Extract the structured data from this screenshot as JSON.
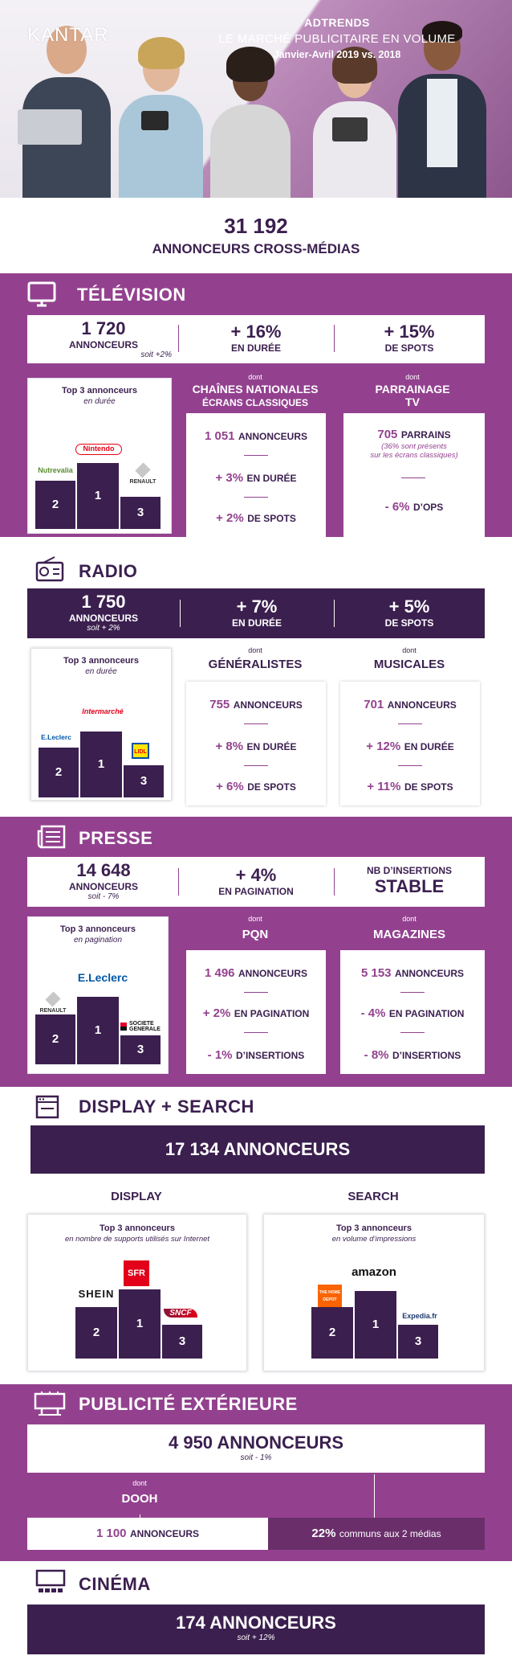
{
  "header": {
    "brand": "KANTAR",
    "title1": "ADTRENDS",
    "title2": "LE MARCHÉ PUBLICITAIRE EN VOLUME",
    "title3": "Janvier-Avril 2019 vs. 2018"
  },
  "total": {
    "number": "31 192",
    "label": "ANNONCEURS CROSS-MÉDIAS"
  },
  "tv": {
    "title": "TÉLÉVISION",
    "icon": "tv-icon",
    "kpi1_num": "1 720",
    "kpi1_label": "ANNONCEURS",
    "kpi1_sub": "soit +2%",
    "kpi2_num": "+ 16%",
    "kpi2_label": "EN DURÉE",
    "kpi3_num": "+ 15%",
    "kpi3_label": "DE SPOTS",
    "top3_title": "Top 3 annonceurs",
    "top3_sub": "en durée",
    "logo1": "Nintendo",
    "logo2": "Nutrevalia",
    "logo3": "RENAULT",
    "col1_dont": "dont",
    "col1_title_a": "CHAÎNES NATIONALES",
    "col1_title_b": "ÉCRANS CLASSIQUES",
    "col1_s1_num": "1 051",
    "col1_s1_label": "ANNONCEURS",
    "col1_s2_num": "+ 3%",
    "col1_s2_label": "EN DURÉE",
    "col1_s3_num": "+ 2%",
    "col1_s3_label": "DE SPOTS",
    "col2_dont": "dont",
    "col2_title_a": "PARRAINAGE",
    "col2_title_b": "TV",
    "col2_s1_num": "705",
    "col2_s1_label": "PARRAINS",
    "col2_s1_note_a": "(36% sont présents",
    "col2_s1_note_b": "sur les écrans classiques)",
    "col2_s2_num": "- 6%",
    "col2_s2_label": "D’OPS"
  },
  "radio": {
    "title": "RADIO",
    "icon": "radio-icon",
    "kpi1_num": "1 750",
    "kpi1_label": "ANNONCEURS",
    "kpi1_sub": "soit + 2%",
    "kpi2_num": "+ 7%",
    "kpi2_label": "EN DURÉE",
    "kpi3_num": "+ 5%",
    "kpi3_label": "DE SPOTS",
    "top3_title": "Top 3 annonceurs",
    "top3_sub": "en durée",
    "logo1": "Intermarché",
    "logo2": "E.Leclerc",
    "logo3": "LIDL",
    "col1_dont": "dont",
    "col1_title": "GÉNÉRALISTES",
    "col1_s1_num": "755",
    "col1_s1_label": "ANNONCEURS",
    "col1_s2_num": "+ 8%",
    "col1_s2_label": "EN DURÉE",
    "col1_s3_num": "+ 6%",
    "col1_s3_label": "DE SPOTS",
    "col2_dont": "dont",
    "col2_title": "MUSICALES",
    "col2_s1_num": "701",
    "col2_s1_label": "ANNONCEURS",
    "col2_s2_num": "+ 12%",
    "col2_s2_label": "EN DURÉE",
    "col2_s3_num": "+ 11%",
    "col2_s3_label": "DE SPOTS"
  },
  "presse": {
    "title": "PRESSE",
    "icon": "newspaper-icon",
    "kpi1_num": "14 648",
    "kpi1_label": "ANNONCEURS",
    "kpi1_sub": "soit - 7%",
    "kpi2_num": "+ 4%",
    "kpi2_label": "EN PAGINATION",
    "kpi3_label": "NB D’INSERTIONS",
    "kpi3_num": "STABLE",
    "top3_title": "Top 3 annonceurs",
    "top3_sub": "en pagination",
    "logo1": "E.Leclerc",
    "logo2": "RENAULT",
    "logo3_a": "SOCIETE",
    "logo3_b": "GENERALE",
    "col1_dont": "dont",
    "col1_title": "PQN",
    "col1_s1_num": "1 496",
    "col1_s1_label": "ANNONCEURS",
    "col1_s2_num": "+ 2%",
    "col1_s2_label": "EN PAGINATION",
    "col1_s3_num": "- 1%",
    "col1_s3_label": "D’INSERTIONS",
    "col2_dont": "dont",
    "col2_title": "MAGAZINES",
    "col2_s1_num": "5 153",
    "col2_s1_label": "ANNONCEURS",
    "col2_s2_num": "- 4%",
    "col2_s2_label": "EN PAGINATION",
    "col2_s3_num": "- 8%",
    "col2_s3_label": "D’INSERTIONS"
  },
  "display": {
    "title": "DISPLAY + SEARCH",
    "icon": "browser-icon",
    "banner": "17 134 ANNONCEURS",
    "left_title": "DISPLAY",
    "left_top3": "Top 3 annonceurs",
    "left_sub": "en nombre de supports utilisés sur Internet",
    "left_logo1": "SFR",
    "left_logo2": "SHEIN",
    "left_logo3": "SNCF",
    "right_title": "SEARCH",
    "right_top3": "Top 3 annonceurs",
    "right_sub": "en volume d’impressions",
    "right_logo1": "amazon",
    "right_logo2": "THE HOME DEPOT",
    "right_logo3": "Expedia.fr"
  },
  "exterieur": {
    "title": "PUBLICITÉ EXTÉRIEURE",
    "icon": "billboard-icon",
    "banner_num": "4 950 ANNONCEURS",
    "banner_sub": "soit - 1%",
    "dont": "dont",
    "dooh": "DOOH",
    "dooh_num": "1 100",
    "dooh_label": "ANNONCEURS",
    "common_num": "22%",
    "common_label": "communs aux 2 médias"
  },
  "cinema": {
    "title": "CINÉMA",
    "icon": "cinema-screen-icon",
    "banner_num": "174 ANNONCEURS",
    "banner_sub": "soit + 12%"
  },
  "podium": {
    "first": "1",
    "second": "2",
    "third": "3"
  },
  "colors": {
    "purple": "#93418f",
    "dark": "#3b1f4f",
    "white": "#ffffff"
  }
}
